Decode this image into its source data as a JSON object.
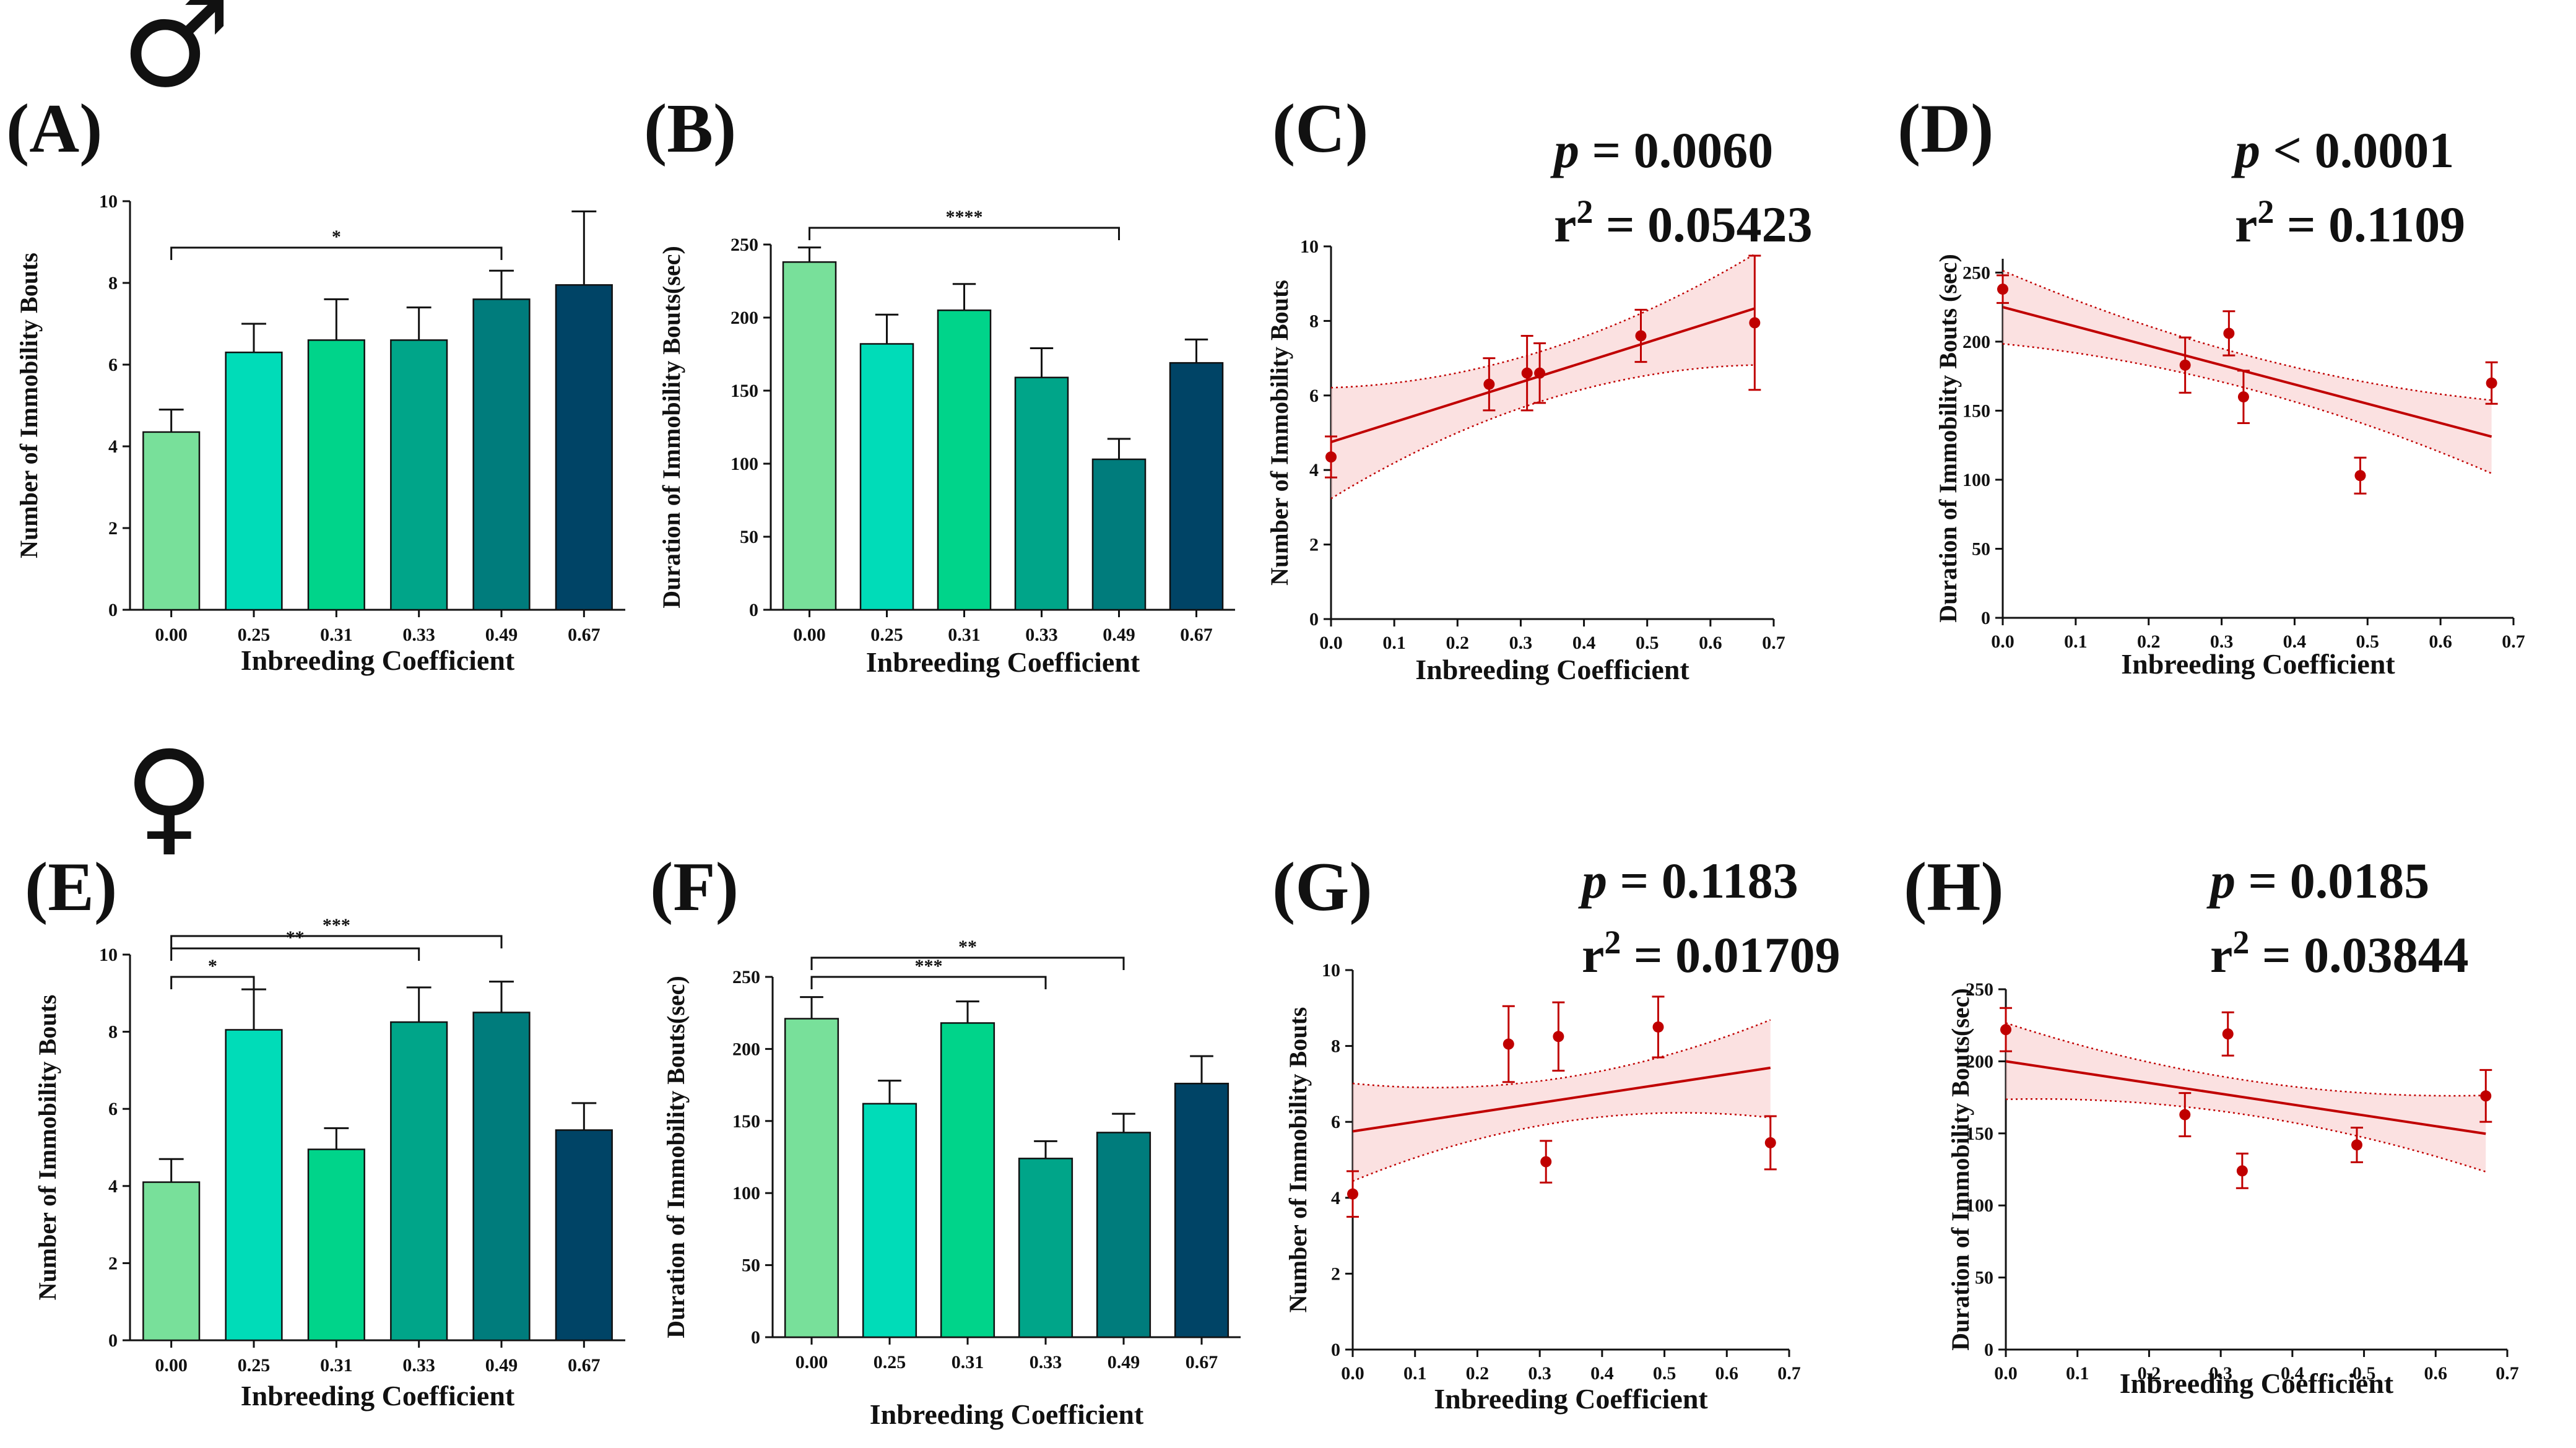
{
  "symbols": {
    "male": "♂",
    "female": "♀"
  },
  "palette": [
    "#78e09a",
    "#00dcb8",
    "#00d48a",
    "#00a589",
    "#007c7c",
    "#004466"
  ],
  "regression_color": "#c00000",
  "band_fill": "#f7c8c8",
  "chart_data": [
    {
      "id": "A",
      "type": "bar",
      "letter": "(A)",
      "sex": "male",
      "categories": [
        "0.00",
        "0.25",
        "0.31",
        "0.33",
        "0.49",
        "0.67"
      ],
      "values": [
        4.35,
        6.3,
        6.6,
        6.6,
        7.6,
        7.95
      ],
      "errors": [
        0.55,
        0.7,
        1.0,
        0.8,
        0.7,
        1.8
      ],
      "ylim": [
        0,
        10
      ],
      "yticks": [
        0,
        2,
        4,
        6,
        8,
        10
      ],
      "xlabel": "Inbreeding Coefficient",
      "ylabel": "Number of Immobility Bouts",
      "significance": [
        {
          "from": 0,
          "to": 4,
          "label": "*"
        }
      ]
    },
    {
      "id": "B",
      "type": "bar",
      "letter": "(B)",
      "sex": "male",
      "categories": [
        "0.00",
        "0.25",
        "0.31",
        "0.33",
        "0.49",
        "0.67"
      ],
      "values": [
        238,
        182,
        205,
        159,
        103,
        169
      ],
      "errors": [
        10,
        20,
        18,
        20,
        14,
        16
      ],
      "ylim": [
        0,
        250
      ],
      "yticks": [
        0,
        50,
        100,
        150,
        200,
        250
      ],
      "xlabel": "Inbreeding Coefficient",
      "ylabel": "Duration of Immobility Bouts(sec)",
      "significance": [
        {
          "from": 0,
          "to": 4,
          "label": "****"
        }
      ]
    },
    {
      "id": "C",
      "type": "scatter",
      "letter": "(C)",
      "sex": "male",
      "stat_p": "= 0.0060",
      "stat_r": "= 0.05423",
      "x": [
        0.0,
        0.25,
        0.31,
        0.33,
        0.49,
        0.67
      ],
      "y": [
        4.35,
        6.3,
        6.6,
        6.6,
        7.6,
        7.95
      ],
      "errors": [
        0.55,
        0.7,
        1.0,
        0.8,
        0.7,
        1.8
      ],
      "fit": {
        "intercept": 4.75,
        "slope": 5.35
      },
      "band": {
        "lower": [
          3.2,
          6.85
        ],
        "upper": [
          6.25,
          9.75
        ]
      },
      "xlim": [
        0,
        0.7
      ],
      "ylim": [
        0,
        10
      ],
      "xticks": [
        "0.0",
        "0.1",
        "0.2",
        "0.3",
        "0.4",
        "0.5",
        "0.6",
        "0.7"
      ],
      "yticks": [
        0,
        2,
        4,
        6,
        8,
        10
      ],
      "xlabel": "Inbreeding Coefficient",
      "ylabel": "Number of Immobility Bouts"
    },
    {
      "id": "D",
      "type": "scatter",
      "letter": "(D)",
      "sex": "male",
      "stat_p": "< 0.0001",
      "stat_r": "= 0.1109",
      "x": [
        0.0,
        0.25,
        0.31,
        0.33,
        0.49,
        0.67
      ],
      "y": [
        238,
        183,
        206,
        160,
        103,
        170
      ],
      "errors": [
        10,
        20,
        16,
        19,
        13,
        15
      ],
      "fit": {
        "intercept": 225,
        "slope": -140
      },
      "band": {
        "lower": [
          197,
          106
        ],
        "upper": [
          252,
          157
        ]
      },
      "xlim": [
        0,
        0.7
      ],
      "ylim": [
        0,
        260
      ],
      "xticks": [
        "0.0",
        "0.1",
        "0.2",
        "0.3",
        "0.4",
        "0.5",
        "0.6",
        "0.7"
      ],
      "yticks": [
        0,
        50,
        100,
        150,
        200,
        250
      ],
      "xlabel": "Inbreeding Coefficient",
      "ylabel": "Duration of Immobility Bouts (sec)"
    },
    {
      "id": "E",
      "type": "bar",
      "letter": "(E)",
      "sex": "female",
      "categories": [
        "0.00",
        "0.25",
        "0.31",
        "0.33",
        "0.49",
        "0.67"
      ],
      "values": [
        4.1,
        8.05,
        4.95,
        8.25,
        8.5,
        5.45
      ],
      "errors": [
        0.6,
        1.05,
        0.55,
        0.9,
        0.8,
        0.7
      ],
      "ylim": [
        0,
        10
      ],
      "yticks": [
        0,
        2,
        4,
        6,
        8,
        10
      ],
      "xlabel": "Inbreeding Coefficient",
      "ylabel": "Number of Immobility Bouts",
      "significance": [
        {
          "from": 0,
          "to": 1,
          "label": "*"
        },
        {
          "from": 0,
          "to": 3,
          "label": "**"
        },
        {
          "from": 0,
          "to": 4,
          "label": "***"
        }
      ]
    },
    {
      "id": "F",
      "type": "bar",
      "letter": "(F)",
      "sex": "female",
      "categories": [
        "0.00",
        "0.25",
        "0.31",
        "0.33",
        "0.49",
        "0.67"
      ],
      "values": [
        221,
        162,
        218,
        124,
        142,
        176
      ],
      "errors": [
        15,
        16,
        15,
        12,
        13,
        19
      ],
      "ylim": [
        0,
        250
      ],
      "yticks": [
        0,
        50,
        100,
        150,
        200,
        250
      ],
      "xlabel": "Inbreeding Coefficient",
      "ylabel": "Duration of Immobility Bouts(sec)",
      "significance": [
        {
          "from": 0,
          "to": 3,
          "label": "***"
        },
        {
          "from": 0,
          "to": 4,
          "label": "**"
        }
      ]
    },
    {
      "id": "G",
      "type": "scatter",
      "letter": "(G)",
      "sex": "female",
      "stat_p": "= 0.1183",
      "stat_r": "= 0.01709",
      "x": [
        0.0,
        0.25,
        0.31,
        0.33,
        0.49,
        0.67
      ],
      "y": [
        4.1,
        8.05,
        4.95,
        8.25,
        8.5,
        5.45
      ],
      "errors": [
        0.6,
        1.0,
        0.55,
        0.9,
        0.8,
        0.7
      ],
      "fit": {
        "intercept": 5.75,
        "slope": 2.5
      },
      "band": {
        "lower": [
          4.45,
          6.1
        ],
        "upper": [
          7.0,
          8.7
        ]
      },
      "xlim": [
        0,
        0.7
      ],
      "ylim": [
        0,
        10
      ],
      "xticks": [
        "0.0",
        "0.1",
        "0.2",
        "0.3",
        "0.4",
        "0.5",
        "0.6",
        "0.7"
      ],
      "yticks": [
        0,
        2,
        4,
        6,
        8,
        10
      ],
      "xlabel": "Inbreeding Coefficient",
      "ylabel": "Number of Immobility Bouts"
    },
    {
      "id": "H",
      "type": "scatter",
      "letter": "(H)",
      "sex": "female",
      "stat_p": "= 0.0185",
      "stat_r": "= 0.03844",
      "x": [
        0.0,
        0.25,
        0.31,
        0.33,
        0.49,
        0.67
      ],
      "y": [
        222,
        163,
        219,
        124,
        142,
        176
      ],
      "errors": [
        15,
        15,
        15,
        12,
        12,
        18
      ],
      "fit": {
        "intercept": 200,
        "slope": -75
      },
      "band": {
        "lower": [
          175,
          122
        ],
        "upper": [
          228,
          175
        ]
      },
      "xlim": [
        0,
        0.7
      ],
      "ylim": [
        0,
        250
      ],
      "xticks": [
        "0.0",
        "0.1",
        "0.2",
        "0.3",
        "0.4",
        "0.5",
        "0.6",
        "0.7"
      ],
      "yticks": [
        0,
        50,
        100,
        150,
        200,
        250
      ],
      "xlabel": "Inbreeding Coefficient",
      "ylabel": "Duration of Immobility Bouts(sec)"
    }
  ]
}
